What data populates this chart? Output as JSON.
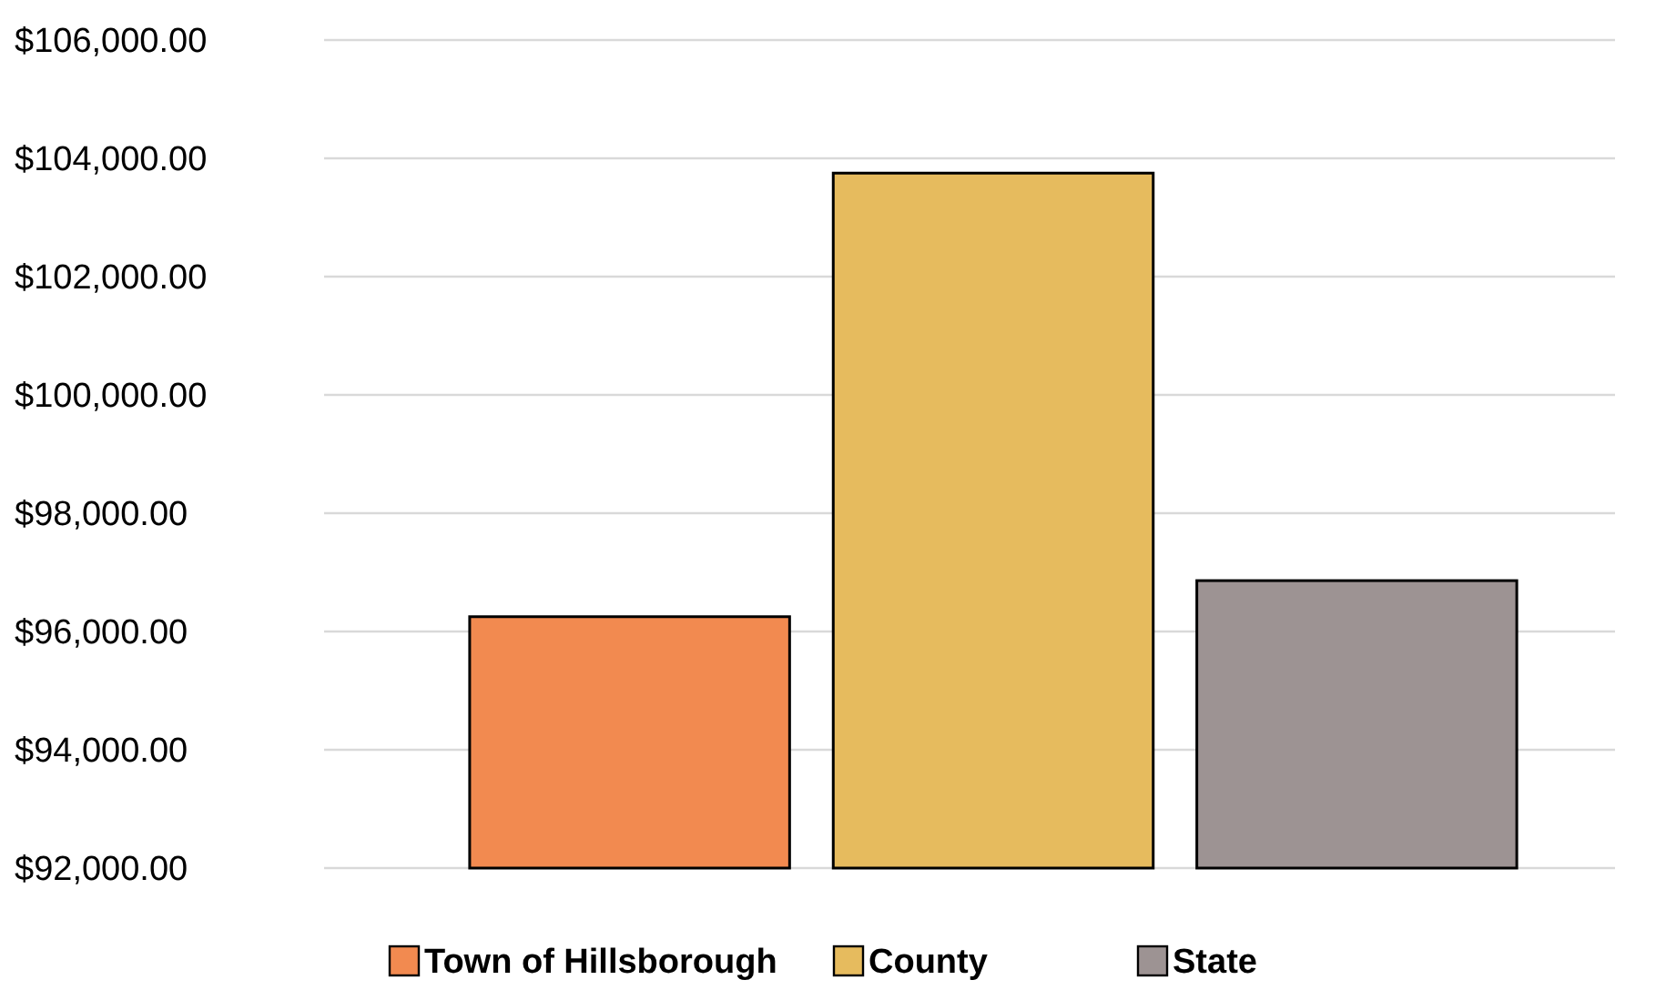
{
  "chart_data": {
    "type": "bar",
    "categories": [
      null
    ],
    "series": [
      {
        "name": "Town of Hillsborough",
        "color": "#f28a50",
        "values": [
          96250
        ]
      },
      {
        "name": "County",
        "color": "#e6bb5e",
        "values": [
          103750
        ]
      },
      {
        "name": "State",
        "color": "#9d9393",
        "values": [
          96860
        ]
      }
    ],
    "ylim": [
      92000,
      106000
    ],
    "yticks": [
      {
        "value": 92000,
        "label": "$92,000.00"
      },
      {
        "value": 94000,
        "label": "$94,000.00"
      },
      {
        "value": 96000,
        "label": "$96,000.00"
      },
      {
        "value": 98000,
        "label": "$98,000.00"
      },
      {
        "value": 100000,
        "label": "$100,000.00"
      },
      {
        "value": 102000,
        "label": "$102,000.00"
      },
      {
        "value": 104000,
        "label": "$104,000.00"
      },
      {
        "value": 106000,
        "label": "$106,000.00"
      }
    ],
    "grid": "y",
    "legend": "bottom"
  }
}
